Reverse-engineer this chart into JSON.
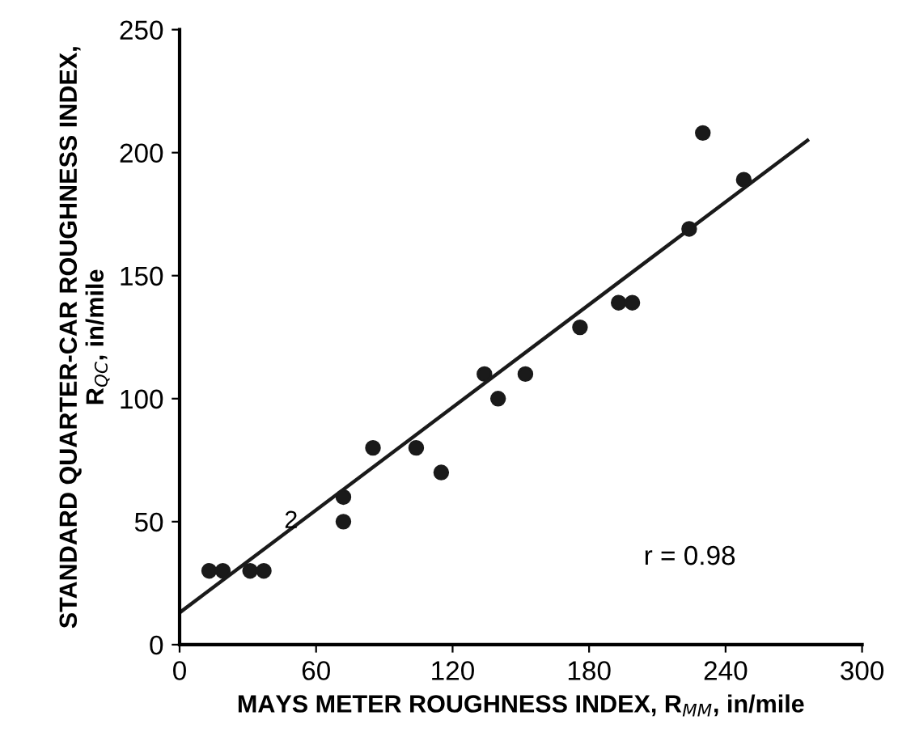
{
  "chart_data": {
    "type": "scatter",
    "xlabel": "MAYS METER ROUGHNESS INDEX, R$_{MM}$, in/mile",
    "ylabel": "STANDARD QUARTER-CAR ROUGHNESS INDEX,\nR$_{QC}$, in/mile",
    "series": [
      {
        "color": "#1a1a1a",
        "marker": "circle",
        "x": [
          13,
          19,
          31,
          37,
          72,
          72,
          85,
          104,
          115,
          134,
          140,
          152,
          176,
          193,
          199,
          224,
          230,
          248
        ],
        "values": [
          30,
          30,
          30,
          30,
          60,
          50,
          80,
          80,
          70,
          110,
          100,
          110,
          129,
          139,
          139,
          169,
          208,
          189
        ]
      },
      {
        "type": "line",
        "color": "#1a1a1a",
        "x": [
          0,
          276
        ],
        "values": [
          13,
          205
        ]
      }
    ],
    "annotations": [
      {
        "text": "2",
        "x": 49,
        "y": 50
      },
      "r = 0.98"
    ],
    "xlim": [
      0,
      300
    ],
    "xticks": [
      0,
      60,
      120,
      180,
      240,
      300
    ],
    "ylim": [
      0,
      250
    ],
    "yticks": [
      0,
      50,
      100,
      150,
      200,
      250
    ],
    "grid": false,
    "legend": false
  }
}
